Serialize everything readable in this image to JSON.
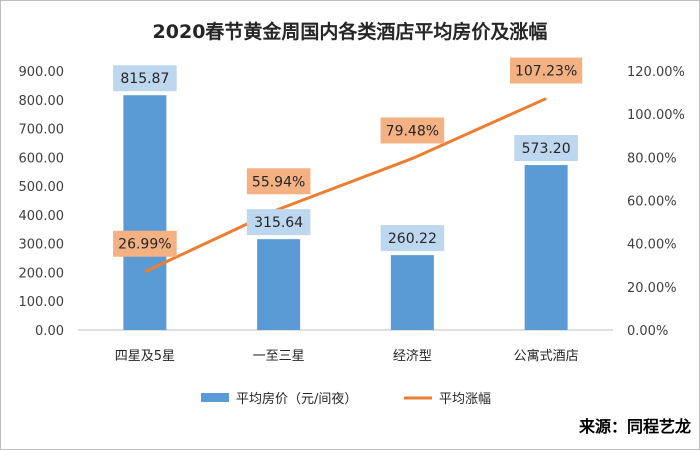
{
  "chart_data": {
    "type": "bar",
    "title": "2020春节黄金周国内各类酒店平均房价及涨幅",
    "categories": [
      "四星及5星",
      "一至三星",
      "经济型",
      "公寓式酒店"
    ],
    "series": [
      {
        "name": "平均房价（元/间夜）",
        "type": "bar",
        "axis": "left",
        "color": "#5b9bd5",
        "values": [
          815.87,
          315.64,
          260.22,
          573.2
        ],
        "labels": [
          "815.87",
          "315.64",
          "260.22",
          "573.20"
        ]
      },
      {
        "name": "平均涨幅",
        "type": "line",
        "axis": "right",
        "color": "#ed7d31",
        "values": [
          26.99,
          55.94,
          79.48,
          107.23
        ],
        "labels": [
          "26.99%",
          "55.94%",
          "79.48%",
          "107.23%"
        ]
      }
    ],
    "y_left": {
      "ylim": [
        0,
        900
      ],
      "ticks": [
        "0.00",
        "100.00",
        "200.00",
        "300.00",
        "400.00",
        "500.00",
        "600.00",
        "700.00",
        "800.00",
        "900.00"
      ]
    },
    "y_right": {
      "ylim": [
        0,
        120
      ],
      "ticks": [
        "0.00%",
        "20.00%",
        "40.00%",
        "60.00%",
        "80.00%",
        "100.00%",
        "120.00%"
      ]
    },
    "grid": false,
    "legend": "bottom",
    "source": "来源：同程艺龙"
  },
  "colors": {
    "bar": "#5b9bd5",
    "bar_label_bg": "#bdd7ee",
    "line": "#ed7d31",
    "line_label_bg": "#f4b183",
    "axis": "#bfbfbf"
  }
}
